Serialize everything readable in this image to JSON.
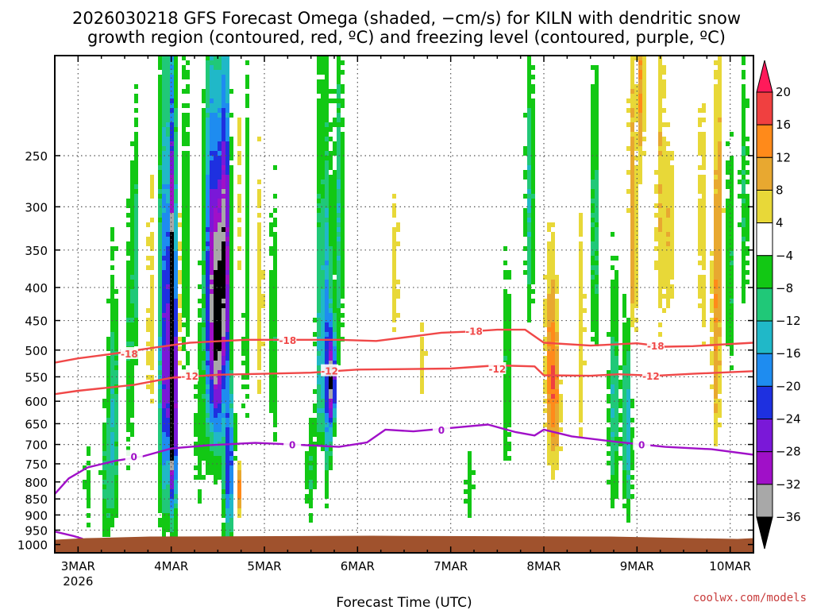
{
  "chart_data": {
    "type": "heatmap",
    "title_line1": "2026030218 GFS Forecast Omega (shaded, −cm/s) for KILN with dendritic snow",
    "title_line2": "growth region (contoured, red, ºC) and freezing level (contoured, purple, ºC)",
    "xlabel": "Forecast Time (UTC)",
    "x_ticks": [
      "3MAR",
      "4MAR",
      "5MAR",
      "6MAR",
      "7MAR",
      "8MAR",
      "9MAR",
      "10MAR"
    ],
    "x_tick_day": [
      3,
      4,
      5,
      6,
      7,
      8,
      9,
      10
    ],
    "x_first_sub": "2026",
    "xlim_days": [
      2.75,
      10.25
    ],
    "y_ticks": [
      250,
      300,
      350,
      400,
      450,
      500,
      550,
      600,
      650,
      700,
      750,
      800,
      850,
      900,
      950,
      1000
    ],
    "ylim_hpa": [
      175,
      1030
    ],
    "colorbar": {
      "labels": [
        "20",
        "16",
        "12",
        "8",
        "4",
        "−4",
        "−8",
        "−12",
        "−16",
        "−20",
        "−24",
        "−28",
        "−32",
        "−36"
      ],
      "colors": [
        "#ff1a5a",
        "#f04040",
        "#ff8a1a",
        "#e8a830",
        "#e8d838",
        "#ffffff",
        "#12c814",
        "#20c878",
        "#20b8c8",
        "#1e8cf0",
        "#1e30e0",
        "#7a18d8",
        "#a010c8",
        "#a8a8a8",
        "#000000"
      ]
    },
    "contours": [
      {
        "label": "-18",
        "color": "#f04848",
        "points": [
          [
            2.75,
            523
          ],
          [
            3.0,
            515
          ],
          [
            3.4,
            506
          ],
          [
            3.8,
            496
          ],
          [
            4.2,
            487
          ],
          [
            4.8,
            482
          ],
          [
            5.3,
            482
          ],
          [
            5.8,
            482
          ],
          [
            6.2,
            484
          ],
          [
            6.6,
            476
          ],
          [
            6.9,
            470
          ],
          [
            7.2,
            468
          ],
          [
            7.5,
            465
          ],
          [
            7.8,
            465
          ],
          [
            8.0,
            487
          ],
          [
            8.5,
            492
          ],
          [
            9.0,
            488
          ],
          [
            9.3,
            494
          ],
          [
            9.6,
            493
          ],
          [
            10.25,
            487
          ]
        ],
        "labels_at": [
          [
            3.55,
            506
          ],
          [
            5.25,
            482
          ],
          [
            7.25,
            467
          ],
          [
            9.2,
            492
          ]
        ]
      },
      {
        "label": "-12",
        "color": "#f04848",
        "points": [
          [
            2.75,
            585
          ],
          [
            3.0,
            578
          ],
          [
            3.3,
            572
          ],
          [
            3.6,
            566
          ],
          [
            4.0,
            552
          ],
          [
            4.5,
            546
          ],
          [
            5.0,
            544
          ],
          [
            5.5,
            542
          ],
          [
            6.0,
            536
          ],
          [
            6.5,
            535
          ],
          [
            7.0,
            534
          ],
          [
            7.5,
            528
          ],
          [
            7.9,
            530
          ],
          [
            8.0,
            547
          ],
          [
            8.5,
            548
          ],
          [
            8.8,
            545
          ],
          [
            9.2,
            548
          ],
          [
            9.6,
            544
          ],
          [
            10.25,
            539
          ]
        ],
        "labels_at": [
          [
            4.2,
            548
          ],
          [
            5.7,
            538
          ],
          [
            7.5,
            534
          ],
          [
            9.15,
            548
          ]
        ]
      },
      {
        "label": "0",
        "color": "#a010c8",
        "points": [
          [
            2.75,
            835
          ],
          [
            2.9,
            790
          ],
          [
            3.1,
            760
          ],
          [
            3.4,
            742
          ],
          [
            3.7,
            730
          ],
          [
            4.0,
            710
          ],
          [
            4.4,
            702
          ],
          [
            4.9,
            696
          ],
          [
            5.3,
            700
          ],
          [
            5.8,
            706
          ],
          [
            6.1,
            695
          ],
          [
            6.3,
            664
          ],
          [
            6.6,
            668
          ],
          [
            7.0,
            660
          ],
          [
            7.4,
            652
          ],
          [
            7.7,
            670
          ],
          [
            7.9,
            678
          ],
          [
            8.0,
            664
          ],
          [
            8.3,
            680
          ],
          [
            8.8,
            694
          ],
          [
            9.3,
            706
          ],
          [
            9.8,
            712
          ],
          [
            10.25,
            726
          ]
        ],
        "labels_at": [
          [
            3.6,
            730
          ],
          [
            5.3,
            700
          ],
          [
            6.9,
            664
          ],
          [
            9.05,
            700
          ]
        ]
      },
      {
        "label": "0",
        "color": "#a010c8",
        "points": [
          [
            2.75,
            955
          ],
          [
            2.95,
            970
          ],
          [
            3.05,
            980
          ]
        ],
        "labels_at": []
      }
    ]
  },
  "credit": "coolwx.com/models",
  "colors": {
    "ground": "#a0522d",
    "grid": "#555555",
    "credit": "#c83c3c"
  }
}
